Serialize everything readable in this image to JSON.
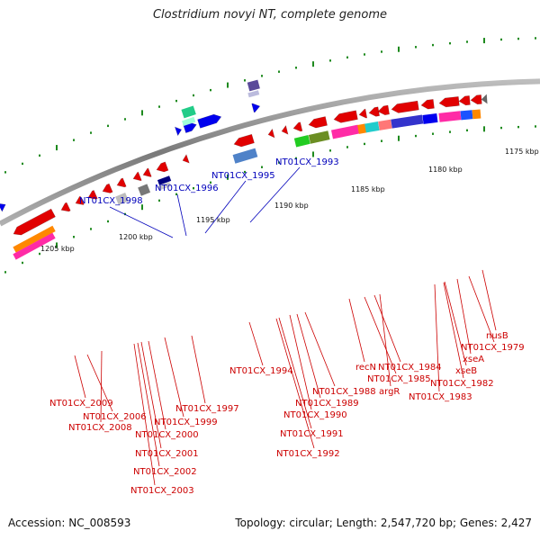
{
  "title": "Clostridium novyi NT, complete genome",
  "footer": {
    "accession": "Accession: NC_008593",
    "summary": "Topology: circular; Length: 2,547,720 bp; Genes: 2,427"
  },
  "colors": {
    "label_forward": "#0000bb",
    "label_reverse": "#cc0000",
    "backbone": "#8a8a8a",
    "tick": "#1e8a1e"
  },
  "scale_labels": [
    "1205 kbp",
    "1200 kbp",
    "1195 kbp",
    "1190 kbp",
    "1185 kbp",
    "1180 kbp",
    "1175 kbp"
  ],
  "forward_gene_labels": [
    "NT01CX_1998",
    "NT01CX_1996",
    "NT01CX_1995",
    "NT01CX_1993"
  ],
  "reverse_gene_labels": [
    "NT01CX_2009",
    "NT01CX_2006",
    "NT01CX_2008",
    "NT01CX_1997",
    "NT01CX_1999",
    "NT01CX_2000",
    "NT01CX_2001",
    "NT01CX_2002",
    "NT01CX_2003",
    "NT01CX_1994",
    "NT01CX_1988",
    "NT01CX_1989",
    "NT01CX_1990",
    "NT01CX_1991",
    "NT01CX_1992",
    "recN",
    "NT01CX_1984",
    "NT01CX_1985",
    "argR",
    "NT01CX_1982",
    "NT01CX_1983",
    "xseB",
    "xseA",
    "NT01CX_1979",
    "nusB"
  ]
}
